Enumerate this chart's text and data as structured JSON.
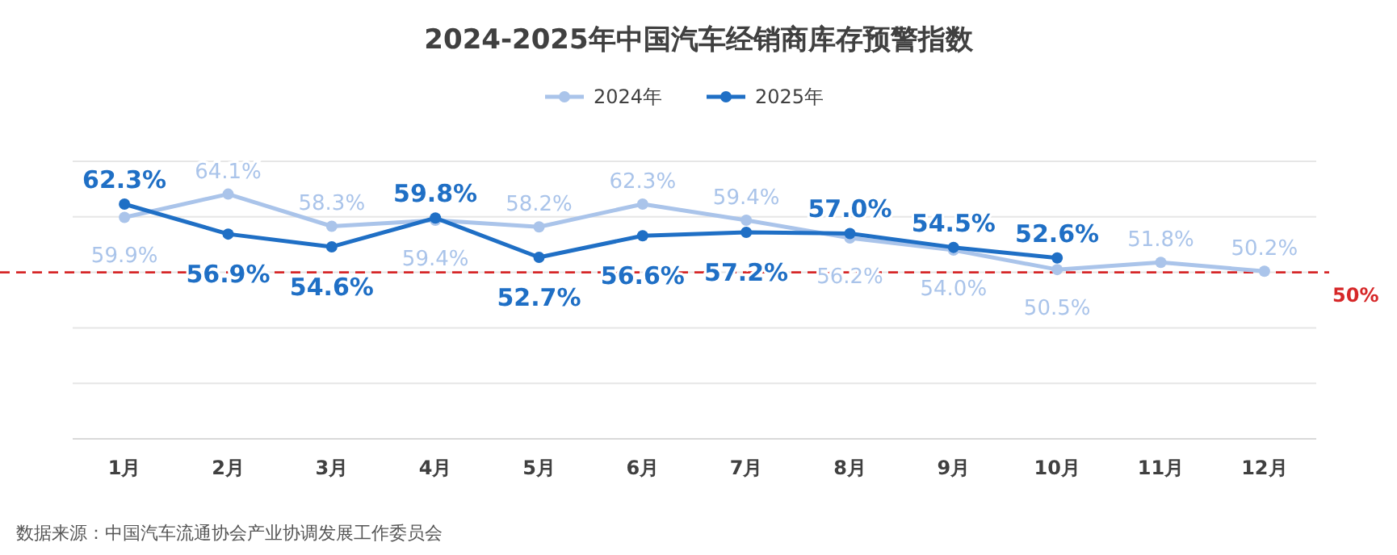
{
  "chart_data": {
    "type": "line",
    "title": "2024-2025年中国汽车经销商库存预警指数",
    "categories": [
      "1月",
      "2月",
      "3月",
      "4月",
      "5月",
      "6月",
      "7月",
      "8月",
      "9月",
      "10月",
      "11月",
      "12月"
    ],
    "series": [
      {
        "name": "2024年",
        "color": "#aac4ea",
        "values": [
          59.9,
          64.1,
          58.3,
          59.4,
          58.2,
          62.3,
          59.4,
          56.2,
          54.0,
          50.5,
          51.8,
          50.2
        ],
        "value_labels": [
          "59.9%",
          "64.1%",
          "58.3%",
          "59.4%",
          "58.2%",
          "62.3%",
          "59.4%",
          "56.2%",
          "54.0%",
          "50.5%",
          "51.8%",
          "50.2%"
        ]
      },
      {
        "name": "2025年",
        "color": "#1f6fc5",
        "values": [
          62.3,
          56.9,
          54.6,
          59.8,
          52.7,
          56.6,
          57.2,
          57.0,
          54.5,
          52.6,
          null,
          null
        ],
        "value_labels": [
          "62.3%",
          "56.9%",
          "54.6%",
          "59.8%",
          "52.7%",
          "56.6%",
          "57.2%",
          "57.0%",
          "54.5%",
          "52.6%",
          null,
          null
        ]
      }
    ],
    "ylim": [
      20,
      70
    ],
    "yticks": [
      {
        "value": 70,
        "label": null
      },
      {
        "value": 20,
        "label": null
      },
      {
        "value": 30,
        "label": null
      },
      {
        "value": 40,
        "label": null
      },
      {
        "value": 50,
        "label": null
      },
      {
        "value": 60,
        "label": null
      }
    ],
    "grid": "y",
    "legend": "top",
    "marker": "circle",
    "line_style": "solid",
    "ref_lines": [
      {
        "axis": "y",
        "value": 50,
        "label": "50%",
        "color": "#d62728",
        "line_style": "dashed"
      }
    ],
    "annotations": [
      "数据来源：中国汽车流通协会产业协调发展工作委员会"
    ]
  }
}
